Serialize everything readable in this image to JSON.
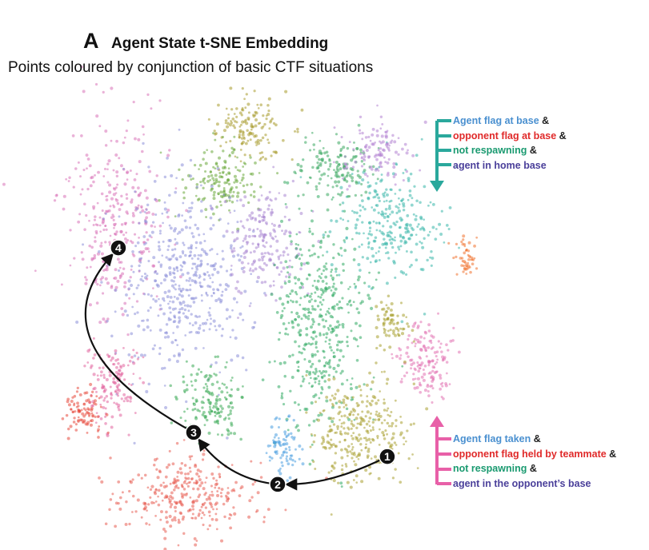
{
  "header": {
    "panel_letter": "A",
    "title": "Agent State t-SNE Embedding",
    "subtitle": "Points coloured by conjunction of basic CTF situations"
  },
  "annotations": [
    {
      "arrow_color": "#2aa89c",
      "direction": "down",
      "lines": [
        {
          "text": "Agent flag at base",
          "color": "#4a90d0",
          "suffix": "&"
        },
        {
          "text": "opponent flag at base",
          "color": "#e02a2a",
          "suffix": "&"
        },
        {
          "text": "not respawning",
          "color": "#1a9a70",
          "suffix": "&"
        },
        {
          "text": "agent in home base",
          "color": "#4a3f9a",
          "suffix": ""
        }
      ]
    },
    {
      "arrow_color": "#e860a8",
      "direction": "up",
      "lines": [
        {
          "text": "Agent flag taken",
          "color": "#4a90d0",
          "suffix": "&"
        },
        {
          "text": "opponent flag held by teammate",
          "color": "#e02a2a",
          "suffix": "&"
        },
        {
          "text": "not respawning",
          "color": "#1a9a70",
          "suffix": "&"
        },
        {
          "text": "agent in the opponent’s base",
          "color": "#4a3f9a",
          "suffix": ""
        }
      ]
    }
  ],
  "chart_data": {
    "type": "scatter",
    "title": "Agent State t-SNE Embedding",
    "subtitle": "Points coloured by conjunction of basic CTF situations",
    "xlabel": "",
    "ylabel": "",
    "xlim": [
      0,
      100
    ],
    "ylim": [
      0,
      100
    ],
    "grid": false,
    "clusters": [
      {
        "color": "#a89a2c",
        "center": [
          44.6,
          8.8
        ],
        "spread": [
          7,
          6
        ],
        "n": 140
      },
      {
        "color": "#6aa83a",
        "center": [
          38.4,
          20.2
        ],
        "spread": [
          6.5,
          6.5
        ],
        "n": 160
      },
      {
        "color": "#d872b8",
        "center": [
          14.3,
          29.8
        ],
        "spread": [
          10,
          17
        ],
        "n": 320
      },
      {
        "color": "#8c90d8",
        "center": [
          30.4,
          42.1
        ],
        "spread": [
          12,
          17
        ],
        "n": 480
      },
      {
        "color": "#a986d2",
        "center": [
          48.2,
          33.3
        ],
        "spread": [
          6.5,
          10
        ],
        "n": 200
      },
      {
        "color": "#2faa62",
        "center": [
          60.7,
          50.9
        ],
        "spread": [
          8,
          21
        ],
        "n": 440
      },
      {
        "color": "#38b6aa",
        "center": [
          76.8,
          29.8
        ],
        "spread": [
          10,
          10
        ],
        "n": 280
      },
      {
        "color": "#3aa860",
        "center": [
          64.3,
          17.5
        ],
        "spread": [
          6.5,
          6
        ],
        "n": 140
      },
      {
        "color": "#e2649e",
        "center": [
          14.3,
          64.9
        ],
        "spread": [
          5,
          7
        ],
        "n": 140
      },
      {
        "color": "#e84a3e",
        "center": [
          8.0,
          71.1
        ],
        "spread": [
          4,
          4
        ],
        "n": 90
      },
      {
        "color": "#e85c52",
        "center": [
          31.3,
          89.5
        ],
        "spread": [
          12,
          7
        ],
        "n": 300
      },
      {
        "color": "#3aaa55",
        "center": [
          35.7,
          68.4
        ],
        "spread": [
          6.5,
          6.5
        ],
        "n": 150
      },
      {
        "color": "#4a9ee0",
        "center": [
          52.7,
          78.9
        ],
        "spread": [
          3.2,
          5
        ],
        "n": 80
      },
      {
        "color": "#aaa032",
        "center": [
          69.6,
          75.4
        ],
        "spread": [
          8.5,
          10
        ],
        "n": 300
      },
      {
        "color": "#e272b2",
        "center": [
          83.9,
          59.6
        ],
        "spread": [
          5,
          6.5
        ],
        "n": 150
      },
      {
        "color": "#f07230",
        "center": [
          93.4,
          37.7
        ],
        "spread": [
          2,
          4
        ],
        "n": 50
      },
      {
        "color": "#b282d2",
        "center": [
          73.2,
          14.0
        ],
        "spread": [
          6.5,
          5
        ],
        "n": 120
      },
      {
        "color": "#a8a030",
        "center": [
          76.8,
          52.6
        ],
        "spread": [
          3.4,
          5
        ],
        "n": 70
      }
    ],
    "trajectory": [
      {
        "label": "1",
        "x": 75.7,
        "y": 80.9
      },
      {
        "label": "2",
        "x": 51.25,
        "y": 87.0
      },
      {
        "label": "3",
        "x": 32.5,
        "y": 75.6
      },
      {
        "label": "4",
        "x": 15.7,
        "y": 35.1
      }
    ]
  }
}
